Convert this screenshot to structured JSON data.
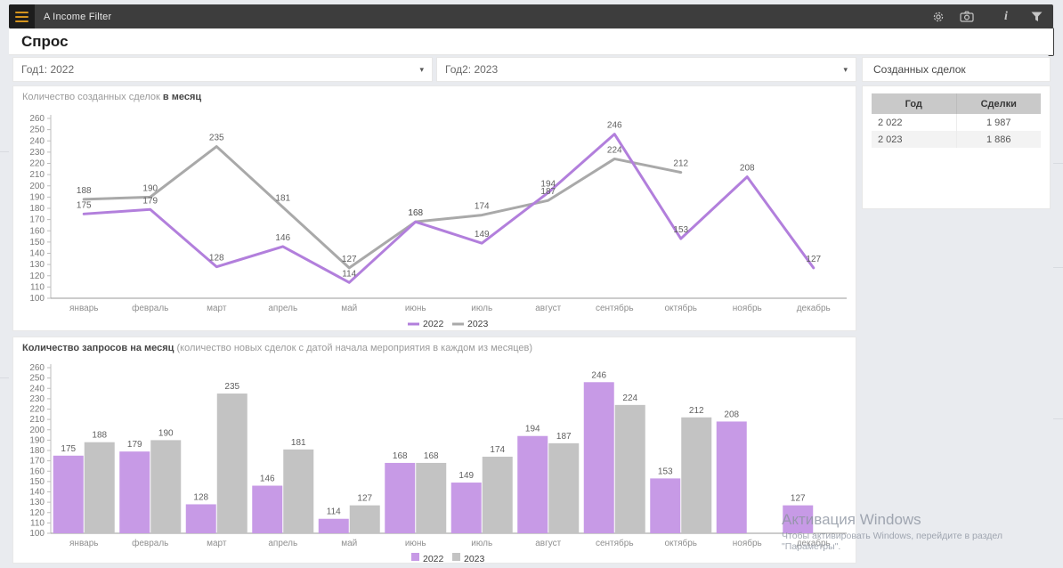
{
  "header": {
    "app_title": "A Income Filter",
    "icons": {
      "menu": "hamburger-icon",
      "settings": "gear-icon",
      "snapshot": "camera-icon",
      "info": "info-icon",
      "filter": "funnel-icon"
    },
    "info_glyph": "i"
  },
  "page": {
    "title": "Спрос"
  },
  "filters": {
    "year1": {
      "label": "Год1: 2022",
      "caret": "▾"
    },
    "year2": {
      "label": "Год2: 2023",
      "caret": "▾"
    }
  },
  "right_panel": {
    "title": "Созданных сделок",
    "table": {
      "columns": [
        "Год",
        "Сделки"
      ],
      "rows": [
        [
          "2 022",
          "1 987"
        ],
        [
          "2 023",
          "1 886"
        ]
      ]
    }
  },
  "line_chart": {
    "title_main": "Количество созданных сделок",
    "title_suffix": " в месяц"
  },
  "bar_chart": {
    "title_main": "Количество запросов на месяц",
    "title_suffix": " (количество новых сделок с датой начала мероприятия в каждом из месяцев)"
  },
  "watermark": {
    "line1": "Активация Windows",
    "line2": "Чтобы активировать Windows, перейдите в раздел \"Параметры\"."
  },
  "colors": {
    "accent_purple_line": "#b27fdc",
    "accent_gray_line": "#a9a9a9",
    "accent_purple_bar": "#c79ae6",
    "accent_gray_bar": "#c3c3c3",
    "header_bg": "#3d3d3d",
    "hamburger_lines": "#d4941e",
    "table_header_bg": "#c9c9c9"
  },
  "chart_data": [
    {
      "type": "line",
      "title": "Количество созданных сделок в месяц",
      "categories": [
        "январь",
        "февраль",
        "март",
        "апрель",
        "май",
        "июнь",
        "июль",
        "август",
        "сентябрь",
        "октябрь",
        "ноябрь",
        "декабрь"
      ],
      "series": [
        {
          "name": "2022",
          "color": "#b27fdc",
          "values": [
            175,
            179,
            128,
            146,
            114,
            168,
            149,
            194,
            246,
            153,
            208,
            127
          ]
        },
        {
          "name": "2023",
          "color": "#a9a9a9",
          "values": [
            188,
            190,
            235,
            181,
            127,
            168,
            174,
            187,
            224,
            212,
            null,
            null
          ]
        }
      ],
      "ylim": [
        100,
        260
      ],
      "ytick_step": 10,
      "grid": false,
      "data_labels": true,
      "legend_position": "bottom"
    },
    {
      "type": "bar",
      "title": "Количество запросов на месяц (количество новых сделок с датой начала мероприятия в каждом из месяцев)",
      "categories": [
        "январь",
        "февраль",
        "март",
        "апрель",
        "май",
        "июнь",
        "июль",
        "август",
        "сентябрь",
        "октябрь",
        "ноябрь",
        "декабрь"
      ],
      "series": [
        {
          "name": "2022",
          "color": "#c79ae6",
          "values": [
            175,
            179,
            128,
            146,
            114,
            168,
            149,
            194,
            246,
            153,
            208,
            127
          ]
        },
        {
          "name": "2023",
          "color": "#c3c3c3",
          "values": [
            188,
            190,
            235,
            181,
            127,
            168,
            174,
            187,
            224,
            212,
            null,
            null
          ]
        }
      ],
      "ylim": [
        100,
        260
      ],
      "ytick_step": 10,
      "grid": false,
      "data_labels": true,
      "legend_position": "bottom"
    }
  ]
}
